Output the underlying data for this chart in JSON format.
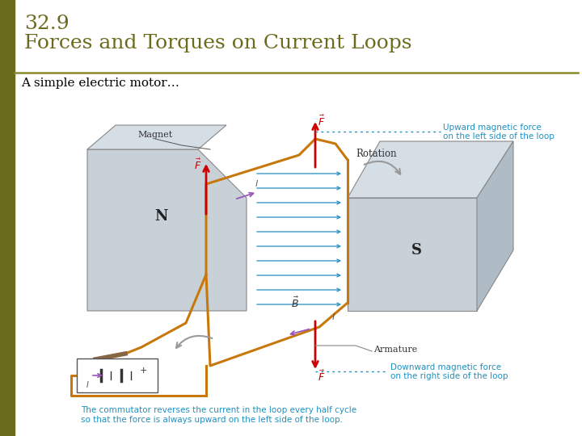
{
  "title_line1": "32.9",
  "title_line2": "Forces and Torques on Current Loops",
  "subtitle": "A simple electric motor…",
  "title_color": "#6b6b1e",
  "subtitle_color": "#000000",
  "bg_color": "#ffffff",
  "left_bar_color": "#6b6b1e",
  "divider_color": "#8b8b2e",
  "caption_line1": "The commutator reverses the current in the loop every half cycle",
  "caption_line2": "so that the force is always upward on the left side of the loop.",
  "caption_color": "#2090c0",
  "annotation1_line1": "Upward magnetic force",
  "annotation1_line2": "on the left side of the loop",
  "annotation2_line1": "Downward magnetic force",
  "annotation2_line2": "on the right side of the loop",
  "annotation_color": "#2090c0",
  "label_magnet": "Magnet",
  "label_N": "N",
  "label_S": "S",
  "label_rotation": "Rotation",
  "label_armature": "Armature",
  "label_B": "$\\vec{B}$",
  "magnet_color_face": "#c8d0d8",
  "magnet_color_top": "#d5dde5",
  "magnet_color_side": "#b0bcc5",
  "magnet_color_dark": "#9aa8b2",
  "loop_color": "#c8780a",
  "arrow_blue_color": "#2090c0",
  "arrow_red_color": "#cc0000",
  "arrow_purple_color": "#9955bb",
  "arrow_grey_color": "#999999"
}
